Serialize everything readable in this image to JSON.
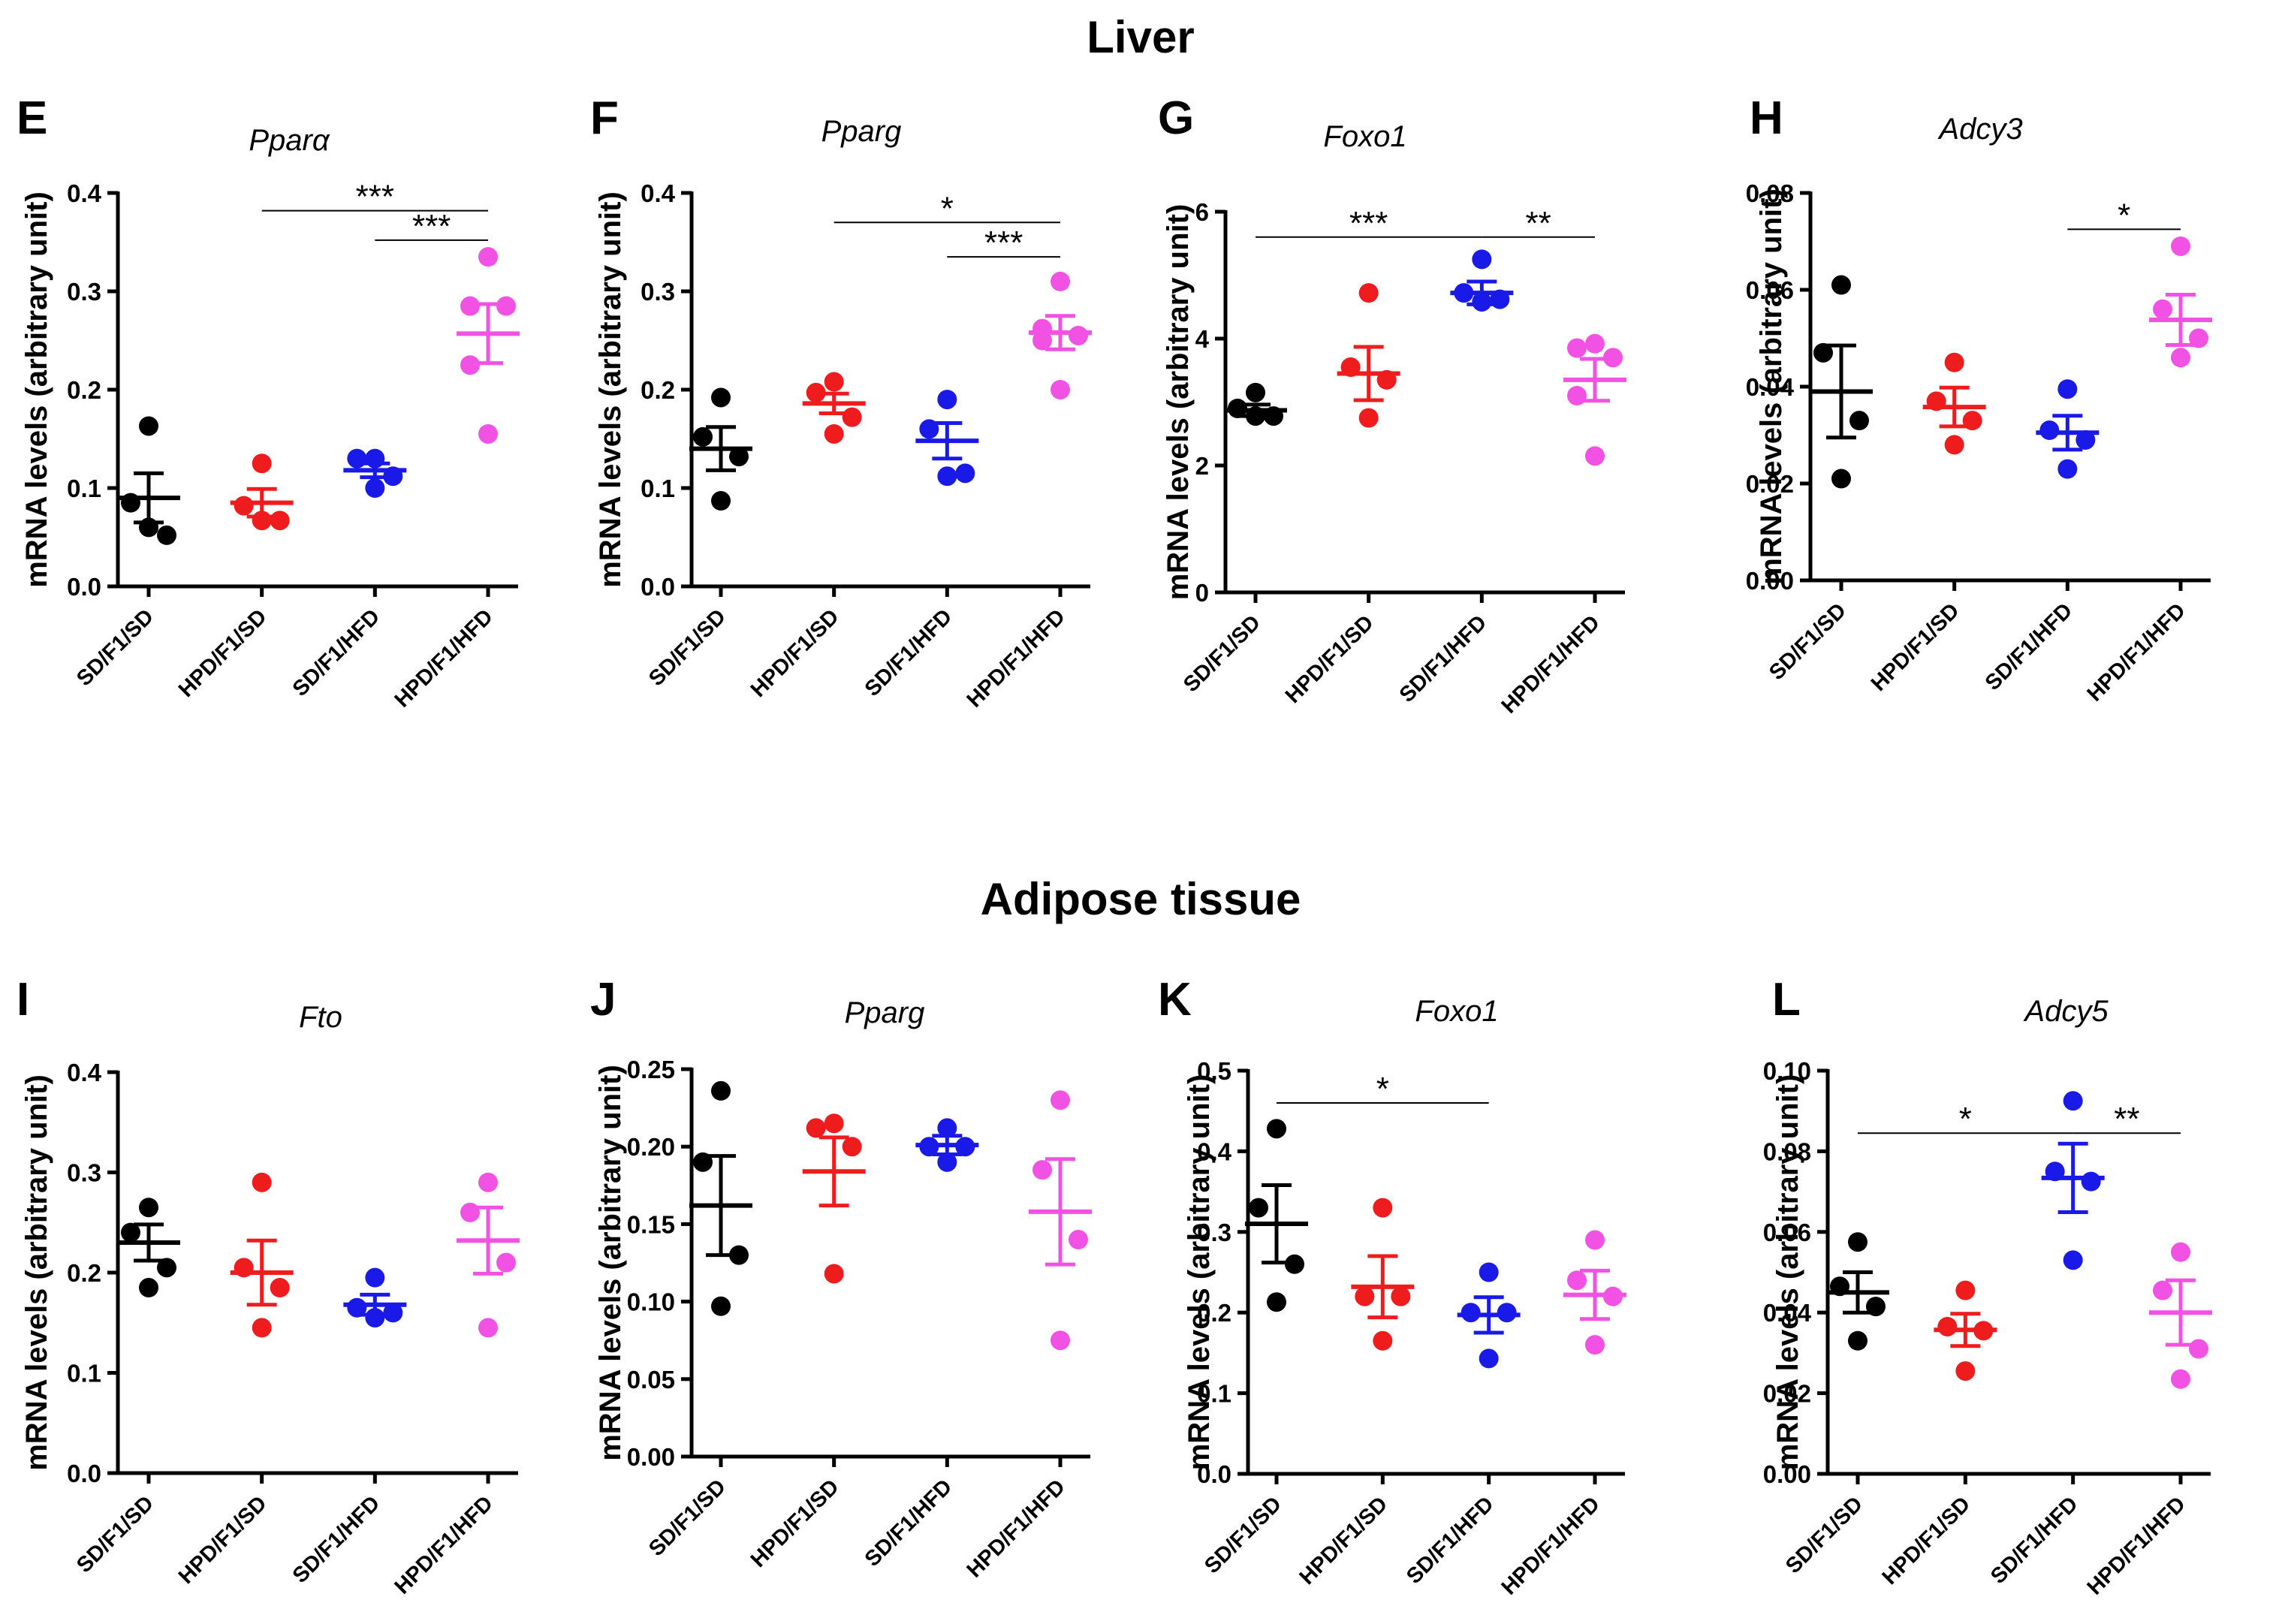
{
  "sections": {
    "liver": "Liver",
    "adipose": "Adipose tissue"
  },
  "colors": {
    "SD/F1/SD": "#000000",
    "HPD/F1/SD": "#ee1c1c",
    "SD/F1/HFD": "#1a1ae8",
    "HPD/F1/HFD": "#f252e3"
  },
  "chart_data": [
    {
      "id": "E",
      "type": "scatter",
      "title": "Pparα",
      "ylabel": "mRNA levels (arbitrary unit)",
      "ylim": [
        0,
        0.4
      ],
      "yticks": [
        "0.0",
        "0.1",
        "0.2",
        "0.3",
        "0.4"
      ],
      "categories": [
        "SD/F1/SD",
        "HPD/F1/SD",
        "SD/F1/HFD",
        "HPD/F1/HFD"
      ],
      "groups": [
        {
          "points": [
            0.163,
            0.085,
            0.052,
            0.06
          ],
          "mean": 0.09,
          "sem": 0.025
        },
        {
          "points": [
            0.125,
            0.082,
            0.067,
            0.067
          ],
          "mean": 0.085,
          "sem": 0.014
        },
        {
          "points": [
            0.13,
            0.13,
            0.112,
            0.1
          ],
          "mean": 0.118,
          "sem": 0.007
        },
        {
          "points": [
            0.335,
            0.285,
            0.285,
            0.225,
            0.155
          ],
          "mean": 0.257,
          "sem": 0.03
        }
      ],
      "significance": [
        {
          "from": 1,
          "to": 3,
          "label": "***",
          "y": 0.382
        },
        {
          "from": 2,
          "to": 3,
          "label": "***",
          "y": 0.352
        }
      ]
    },
    {
      "id": "F",
      "type": "scatter",
      "title": "Pparg",
      "ylabel": "mRNA levels (arbitrary unit)",
      "ylim": [
        0,
        0.4
      ],
      "yticks": [
        "0.0",
        "0.1",
        "0.2",
        "0.3",
        "0.4"
      ],
      "categories": [
        "SD/F1/SD",
        "HPD/F1/SD",
        "SD/F1/HFD",
        "HPD/F1/HFD"
      ],
      "groups": [
        {
          "points": [
            0.192,
            0.152,
            0.132,
            0.087
          ],
          "mean": 0.14,
          "sem": 0.022
        },
        {
          "points": [
            0.208,
            0.197,
            0.172,
            0.155
          ],
          "mean": 0.186,
          "sem": 0.01
        },
        {
          "points": [
            0.19,
            0.16,
            0.115,
            0.112
          ],
          "mean": 0.148,
          "sem": 0.018
        },
        {
          "points": [
            0.31,
            0.262,
            0.255,
            0.25,
            0.2
          ],
          "mean": 0.258,
          "sem": 0.017
        }
      ],
      "significance": [
        {
          "from": 1,
          "to": 3,
          "label": "*",
          "y": 0.37
        },
        {
          "from": 2,
          "to": 3,
          "label": "***",
          "y": 0.335
        }
      ]
    },
    {
      "id": "G",
      "type": "scatter",
      "title": "Foxo1",
      "ylabel": "mRNA levels (arbitrary unit)",
      "ylim": [
        0,
        6
      ],
      "yticks": [
        "0",
        "2",
        "4",
        "6"
      ],
      "categories": [
        "SD/F1/SD",
        "HPD/F1/SD",
        "SD/F1/HFD",
        "HPD/F1/HFD"
      ],
      "groups": [
        {
          "points": [
            3.15,
            2.9,
            2.78,
            2.78
          ],
          "mean": 2.87,
          "sem": 0.09
        },
        {
          "points": [
            4.72,
            3.55,
            3.35,
            2.75
          ],
          "mean": 3.45,
          "sem": 0.42
        },
        {
          "points": [
            5.25,
            4.72,
            4.62,
            4.58
          ],
          "mean": 4.72,
          "sem": 0.18
        },
        {
          "points": [
            3.92,
            3.85,
            3.7,
            3.1,
            2.15
          ],
          "mean": 3.35,
          "sem": 0.33
        }
      ],
      "significance": [
        {
          "from": 0,
          "to": 2,
          "label": "***",
          "y": 5.6
        },
        {
          "from": 2,
          "to": 3,
          "label": "**",
          "y": 5.6
        }
      ]
    },
    {
      "id": "H",
      "type": "scatter",
      "title": "Adcy3",
      "ylabel": "mRNA levels (arbitrary unit)",
      "ylim": [
        0,
        0.08
      ],
      "yticks": [
        "0.00",
        "0.02",
        "0.04",
        "0.06",
        "0.08"
      ],
      "categories": [
        "SD/F1/SD",
        "HPD/F1/SD",
        "SD/F1/HFD",
        "HPD/F1/HFD"
      ],
      "groups": [
        {
          "points": [
            0.061,
            0.047,
            0.033,
            0.021
          ],
          "mean": 0.039,
          "sem": 0.0095
        },
        {
          "points": [
            0.045,
            0.037,
            0.033,
            0.028
          ],
          "mean": 0.0358,
          "sem": 0.004
        },
        {
          "points": [
            0.0395,
            0.031,
            0.029,
            0.023
          ],
          "mean": 0.0305,
          "sem": 0.0035
        },
        {
          "points": [
            0.069,
            0.056,
            0.05,
            0.046
          ],
          "mean": 0.0538,
          "sem": 0.0052
        }
      ],
      "significance": [
        {
          "from": 2,
          "to": 3,
          "label": "*",
          "y": 0.0725
        }
      ]
    },
    {
      "id": "I",
      "type": "scatter",
      "title": "Fto",
      "ylabel": "mRNA levels (arbitrary unit)",
      "ylim": [
        0,
        0.4
      ],
      "yticks": [
        "0.0",
        "0.1",
        "0.2",
        "0.3",
        "0.4"
      ],
      "categories": [
        "SD/F1/SD",
        "HPD/F1/SD",
        "SD/F1/HFD",
        "HPD/F1/HFD"
      ],
      "groups": [
        {
          "points": [
            0.265,
            0.24,
            0.205,
            0.185
          ],
          "mean": 0.23,
          "sem": 0.018
        },
        {
          "points": [
            0.29,
            0.205,
            0.185,
            0.145
          ],
          "mean": 0.2,
          "sem": 0.032
        },
        {
          "points": [
            0.195,
            0.165,
            0.16,
            0.155
          ],
          "mean": 0.168,
          "sem": 0.01
        },
        {
          "points": [
            0.29,
            0.26,
            0.21,
            0.145
          ],
          "mean": 0.232,
          "sem": 0.033
        }
      ],
      "significance": []
    },
    {
      "id": "J",
      "type": "scatter",
      "title": "Pparg",
      "ylabel": "mRNA levels (arbitrary unit)",
      "ylim": [
        0,
        0.25
      ],
      "yticks": [
        "0.00",
        "0.05",
        "0.10",
        "0.15",
        "0.20",
        "0.25"
      ],
      "categories": [
        "SD/F1/SD",
        "HPD/F1/SD",
        "SD/F1/HFD",
        "HPD/F1/HFD"
      ],
      "groups": [
        {
          "points": [
            0.236,
            0.19,
            0.13,
            0.097
          ],
          "mean": 0.162,
          "sem": 0.032
        },
        {
          "points": [
            0.215,
            0.212,
            0.2,
            0.118
          ],
          "mean": 0.184,
          "sem": 0.022
        },
        {
          "points": [
            0.212,
            0.2,
            0.2,
            0.19
          ],
          "mean": 0.201,
          "sem": 0.006
        },
        {
          "points": [
            0.23,
            0.185,
            0.14,
            0.075
          ],
          "mean": 0.158,
          "sem": 0.034
        }
      ],
      "significance": []
    },
    {
      "id": "K",
      "type": "scatter",
      "title": "Foxo1",
      "ylabel": "mRNA levels (arbitrary unit)",
      "ylim": [
        0,
        0.5
      ],
      "yticks": [
        "0.0",
        "0.1",
        "0.2",
        "0.3",
        "0.4",
        "0.5"
      ],
      "categories": [
        "SD/F1/SD",
        "HPD/F1/SD",
        "SD/F1/HFD",
        "HPD/F1/HFD"
      ],
      "groups": [
        {
          "points": [
            0.428,
            0.33,
            0.26,
            0.213
          ],
          "mean": 0.31,
          "sem": 0.048
        },
        {
          "points": [
            0.33,
            0.22,
            0.22,
            0.165
          ],
          "mean": 0.232,
          "sem": 0.038
        },
        {
          "points": [
            0.25,
            0.2,
            0.2,
            0.143
          ],
          "mean": 0.197,
          "sem": 0.022
        },
        {
          "points": [
            0.29,
            0.24,
            0.22,
            0.16
          ],
          "mean": 0.222,
          "sem": 0.03
        }
      ],
      "significance": [
        {
          "from": 0,
          "to": 2,
          "label": "*",
          "y": 0.46
        }
      ]
    },
    {
      "id": "L",
      "type": "scatter",
      "title": "Adcy5",
      "ylabel": "mRNA levels (arbitrary unit)",
      "ylim": [
        0,
        0.1
      ],
      "yticks": [
        "0.00",
        "0.02",
        "0.04",
        "0.06",
        "0.08",
        "0.10"
      ],
      "categories": [
        "SD/F1/SD",
        "HPD/F1/SD",
        "SD/F1/HFD",
        "HPD/F1/HFD"
      ],
      "groups": [
        {
          "points": [
            0.0575,
            0.0465,
            0.0415,
            0.033
          ],
          "mean": 0.045,
          "sem": 0.005
        },
        {
          "points": [
            0.0455,
            0.0365,
            0.0355,
            0.0255
          ],
          "mean": 0.0357,
          "sem": 0.004
        },
        {
          "points": [
            0.0925,
            0.075,
            0.0725,
            0.053
          ],
          "mean": 0.0734,
          "sem": 0.0085
        },
        {
          "points": [
            0.055,
            0.0455,
            0.031,
            0.0235
          ],
          "mean": 0.04,
          "sem": 0.008
        }
      ],
      "significance": [
        {
          "from": 0,
          "to": 2,
          "label": "*",
          "y": 0.0845
        },
        {
          "from": 2,
          "to": 3,
          "label": "**",
          "y": 0.0845
        }
      ]
    }
  ]
}
